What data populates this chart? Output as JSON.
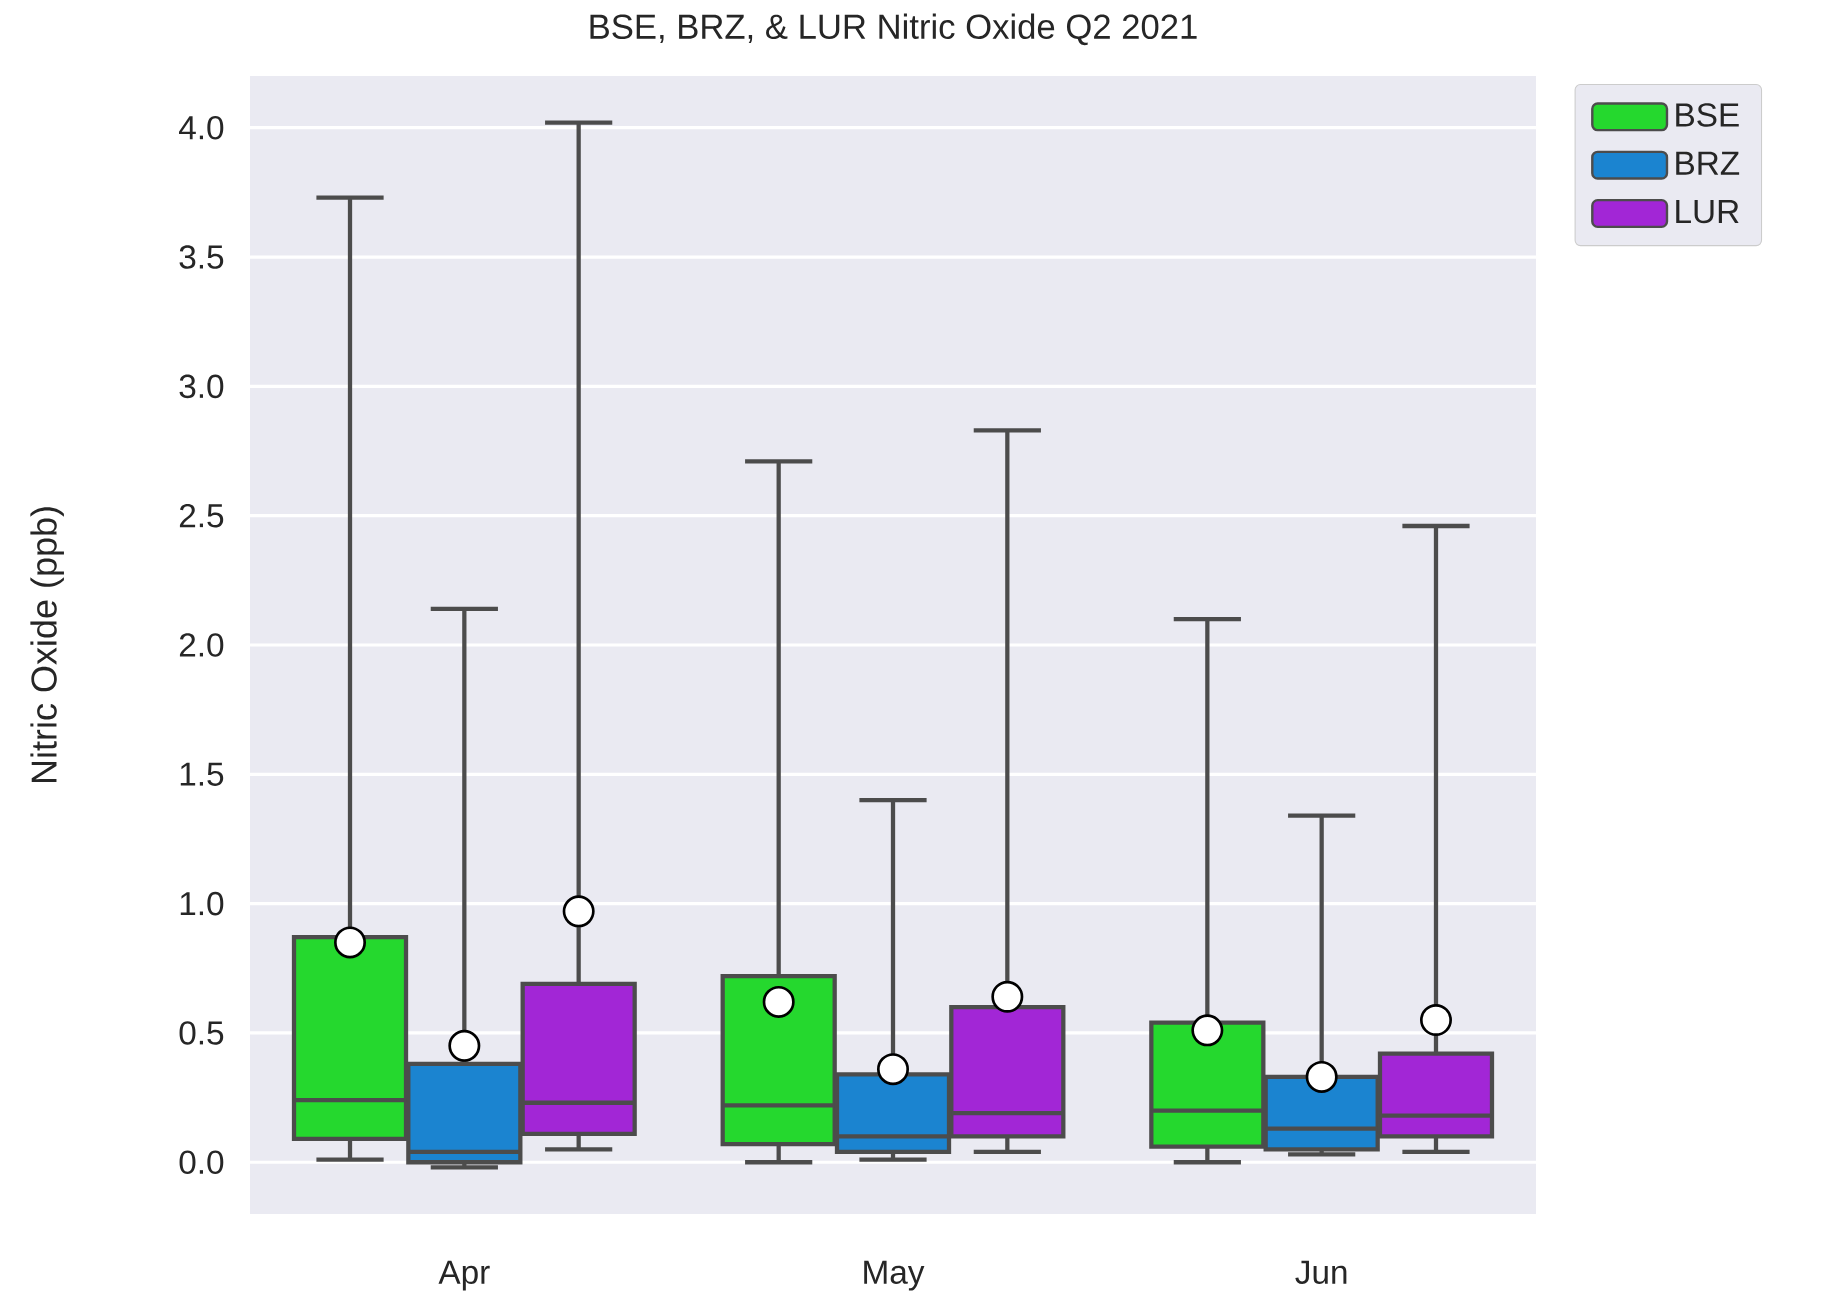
{
  "chart_data": {
    "type": "box",
    "title": "BSE, BRZ, & LUR Nitric Oxide Q2 2021",
    "ylabel": "Nitric Oxide (ppb)",
    "categories": [
      "Apr",
      "May",
      "Jun"
    ],
    "series": [
      {
        "name": "BSE",
        "color": "#25d82e",
        "boxes": [
          {
            "low": 0.01,
            "q1": 0.09,
            "median": 0.24,
            "q3": 0.87,
            "high": 3.73,
            "mean": 0.85
          },
          {
            "low": 0.0,
            "q1": 0.07,
            "median": 0.22,
            "q3": 0.72,
            "high": 2.71,
            "mean": 0.62
          },
          {
            "low": 0.0,
            "q1": 0.06,
            "median": 0.2,
            "q3": 0.54,
            "high": 2.1,
            "mean": 0.51
          }
        ]
      },
      {
        "name": "BRZ",
        "color": "#1b84d0",
        "boxes": [
          {
            "low": -0.02,
            "q1": 0.0,
            "median": 0.04,
            "q3": 0.38,
            "high": 2.14,
            "mean": 0.45
          },
          {
            "low": 0.01,
            "q1": 0.04,
            "median": 0.1,
            "q3": 0.34,
            "high": 1.4,
            "mean": 0.36
          },
          {
            "low": 0.03,
            "q1": 0.05,
            "median": 0.13,
            "q3": 0.33,
            "high": 1.34,
            "mean": 0.33
          }
        ]
      },
      {
        "name": "LUR",
        "color": "#a226d6",
        "boxes": [
          {
            "low": 0.05,
            "q1": 0.11,
            "median": 0.23,
            "q3": 0.69,
            "high": 4.02,
            "mean": 0.97
          },
          {
            "low": 0.04,
            "q1": 0.1,
            "median": 0.19,
            "q3": 0.6,
            "high": 2.83,
            "mean": 0.64
          },
          {
            "low": 0.04,
            "q1": 0.1,
            "median": 0.18,
            "q3": 0.42,
            "high": 2.46,
            "mean": 0.55
          }
        ]
      }
    ],
    "ylim": [
      -0.2,
      4.2
    ],
    "yticks": [
      {
        "value": 0,
        "label": "0.0"
      },
      {
        "value": 0.5,
        "label": "0.5"
      },
      {
        "value": 1,
        "label": "1.0"
      },
      {
        "value": 1.5,
        "label": "1.5"
      },
      {
        "value": 2,
        "label": "2.0"
      },
      {
        "value": 2.5,
        "label": "2.5"
      },
      {
        "value": 3,
        "label": "3.0"
      },
      {
        "value": 3.5,
        "label": "3.5"
      },
      {
        "value": 4,
        "label": "4.0"
      }
    ],
    "grid": "y",
    "legend": "top right",
    "marker": "circle"
  }
}
